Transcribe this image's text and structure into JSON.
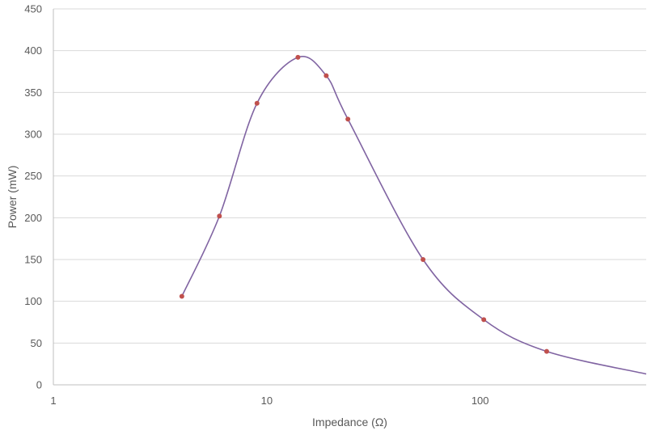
{
  "chart_data": {
    "type": "scatter",
    "title": "",
    "xlabel": "Impedance (Ω)",
    "ylabel": "Power (mW)",
    "x_scale": "log",
    "xlim": [
      1,
      600
    ],
    "ylim": [
      0,
      450
    ],
    "x_ticks": [
      1,
      10,
      100
    ],
    "x_tick_labels": [
      "1",
      "10",
      "100"
    ],
    "y_ticks": [
      0,
      50,
      100,
      150,
      200,
      250,
      300,
      350,
      400,
      450
    ],
    "y_tick_labels": [
      "0",
      "50",
      "100",
      "150",
      "200",
      "250",
      "300",
      "350",
      "400",
      "450"
    ],
    "grid": "horizontal",
    "legend": "none",
    "series": [
      {
        "points": [
          {
            "x": 4,
            "y": 106
          },
          {
            "x": 6,
            "y": 202
          },
          {
            "x": 9,
            "y": 337
          },
          {
            "x": 14,
            "y": 392
          },
          {
            "x": 19,
            "y": 370
          },
          {
            "x": 24,
            "y": 318
          },
          {
            "x": 54,
            "y": 150
          },
          {
            "x": 104,
            "y": 78
          },
          {
            "x": 205,
            "y": 40
          }
        ],
        "marker_color": "#C0504D",
        "line_color": "#8064A2"
      }
    ],
    "fitted_curve": {
      "points": [
        {
          "x": 4,
          "y": 106
        },
        {
          "x": 6,
          "y": 202
        },
        {
          "x": 9,
          "y": 337
        },
        {
          "x": 14,
          "y": 392
        },
        {
          "x": 19,
          "y": 370
        },
        {
          "x": 24,
          "y": 318
        },
        {
          "x": 54,
          "y": 150
        },
        {
          "x": 104,
          "y": 78
        },
        {
          "x": 205,
          "y": 40
        },
        {
          "x": 600,
          "y": 13
        }
      ],
      "color": "#8064A2"
    },
    "colors": {
      "gridline": "#D9D9D9",
      "axis": "#BFBFBF",
      "text": "#595959"
    }
  }
}
